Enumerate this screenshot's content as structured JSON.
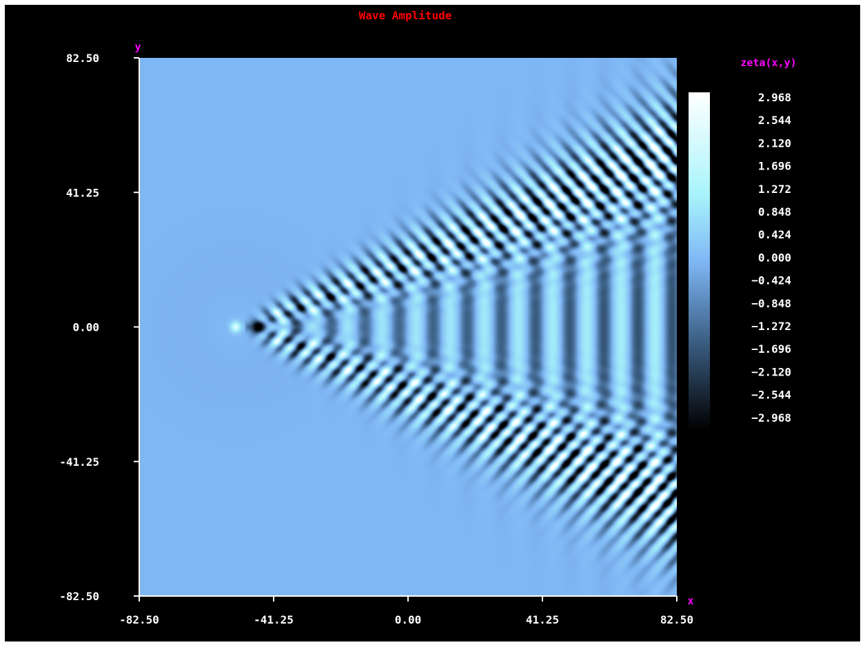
{
  "chart_data": {
    "type": "heatmap",
    "title": "Wave Amplitude",
    "xlabel": "x",
    "ylabel": "y",
    "xlim": [
      -82.5,
      82.5
    ],
    "ylim": [
      -82.5,
      82.5
    ],
    "x_ticks": [
      "-82.50",
      "-41.25",
      "0.00",
      "41.25",
      "82.50"
    ],
    "y_ticks": [
      "82.50",
      "41.25",
      "0.00",
      "-41.25",
      "-82.50"
    ],
    "colorbar": {
      "title": "zeta(x,y)",
      "range": [
        -2.968,
        2.968
      ],
      "tick_labels": [
        "2.968",
        "2.544",
        "2.120",
        "1.696",
        "1.272",
        "0.848",
        "0.424",
        "0.000",
        "−0.424",
        "−0.848",
        "−1.272",
        "−1.696",
        "−2.120",
        "−2.544",
        "−2.968"
      ]
    },
    "field": {
      "description_source": "Kelvin ship wake pattern",
      "source_position": [
        -53,
        0
      ],
      "wedge_apex_x": -50
    },
    "colors": {
      "background": "#000000",
      "title": "#ff0000",
      "axis_titles": "#ff00ff",
      "ticks": "#ffffff",
      "neutral": "#7fb7f5",
      "low": "#000000",
      "high": "#ffffff"
    }
  }
}
